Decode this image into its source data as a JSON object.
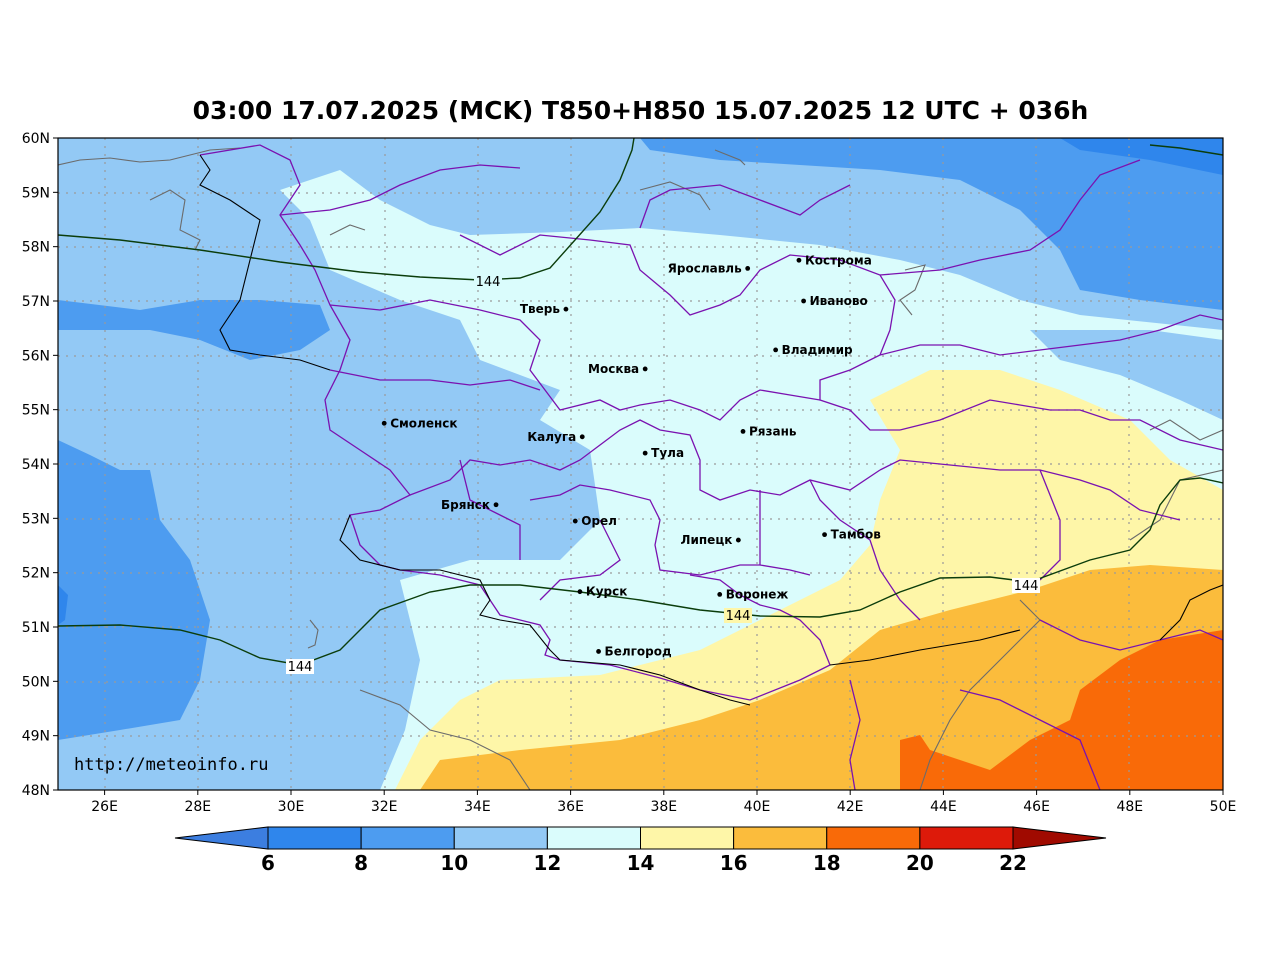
{
  "title": "03:00 17.07.2025 (MCK) T850+H850 15.07.2025 12 UTC + 036h",
  "watermark": "http://meteoinfo.ru",
  "lat_ticks": [
    "60N",
    "59N",
    "58N",
    "57N",
    "56N",
    "55N",
    "54N",
    "53N",
    "52N",
    "51N",
    "50N",
    "49N",
    "48N"
  ],
  "lon_ticks": [
    "26E",
    "28E",
    "30E",
    "32E",
    "34E",
    "36E",
    "38E",
    "40E",
    "42E",
    "44E",
    "46E",
    "48E",
    "50E"
  ],
  "colorbar": {
    "labels": [
      "6",
      "8",
      "10",
      "12",
      "14",
      "16",
      "18",
      "20",
      "22"
    ],
    "colors": [
      "#3c7ee0",
      "#2f86ec",
      "#4d9cf0",
      "#93c9f5",
      "#dafcfc",
      "#fef6a8",
      "#fbbc3c",
      "#f96a08",
      "#dd1a0a",
      "#a00a00"
    ]
  },
  "isolines": [
    "144",
    "144",
    "144",
    "144"
  ],
  "cities": [
    {
      "name": "Ярославль",
      "lon": 39.8,
      "lat": 57.6,
      "side": "left"
    },
    {
      "name": "Кострома",
      "lon": 40.9,
      "lat": 57.75,
      "side": "right"
    },
    {
      "name": "Иваново",
      "lon": 41.0,
      "lat": 57.0,
      "side": "right"
    },
    {
      "name": "Тверь",
      "lon": 35.9,
      "lat": 56.85,
      "side": "left"
    },
    {
      "name": "Владимир",
      "lon": 40.4,
      "lat": 56.1,
      "side": "right"
    },
    {
      "name": "Москва",
      "lon": 37.6,
      "lat": 55.75,
      "side": "left"
    },
    {
      "name": "Смоленск",
      "lon": 32.0,
      "lat": 54.75,
      "side": "right"
    },
    {
      "name": "Рязань",
      "lon": 39.7,
      "lat": 54.6,
      "side": "right"
    },
    {
      "name": "Калуга",
      "lon": 36.25,
      "lat": 54.5,
      "side": "left"
    },
    {
      "name": "Тула",
      "lon": 37.6,
      "lat": 54.2,
      "side": "right"
    },
    {
      "name": "Брянск",
      "lon": 34.4,
      "lat": 53.25,
      "side": "left"
    },
    {
      "name": "Орел",
      "lon": 36.1,
      "lat": 52.95,
      "side": "right"
    },
    {
      "name": "Липецк",
      "lon": 39.6,
      "lat": 52.6,
      "side": "left"
    },
    {
      "name": "Тамбов",
      "lon": 41.45,
      "lat": 52.7,
      "side": "right"
    },
    {
      "name": "Курск",
      "lon": 36.2,
      "lat": 51.65,
      "side": "right"
    },
    {
      "name": "Воронеж",
      "lon": 39.2,
      "lat": 51.6,
      "side": "right"
    },
    {
      "name": "Белгород",
      "lon": 36.6,
      "lat": 50.55,
      "side": "right"
    }
  ]
}
